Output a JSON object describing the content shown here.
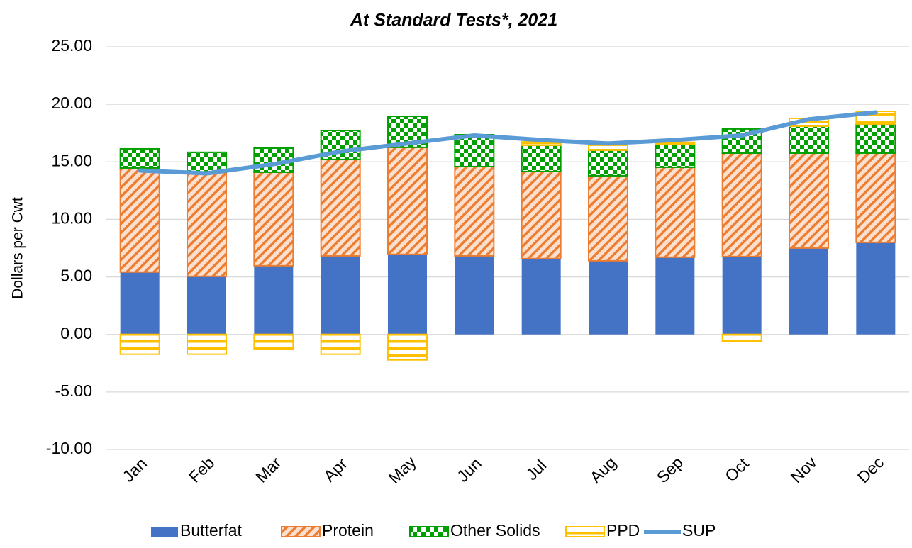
{
  "chart_data": {
    "type": "bar",
    "stacked": true,
    "title": "At Standard Tests*, 2021",
    "y_label": "Dollars per Cwt",
    "categories": [
      "Jan",
      "Feb",
      "Mar",
      "Apr",
      "May",
      "Jun",
      "Jul",
      "Aug",
      "Sep",
      "Oct",
      "Nov",
      "Dec"
    ],
    "series": [
      {
        "name": "Butterfat",
        "color": "#4472c4",
        "values": [
          5.42,
          5.05,
          5.97,
          6.83,
          6.96,
          6.83,
          6.59,
          6.4,
          6.71,
          6.77,
          7.51,
          8.0
        ]
      },
      {
        "name": "Protein",
        "color": "#ed7d31",
        "values": [
          9.05,
          9.05,
          8.13,
          8.38,
          9.3,
          7.76,
          7.57,
          7.39,
          7.82,
          8.99,
          8.25,
          7.76
        ]
      },
      {
        "name": "Other Solids",
        "color": "#00a000",
        "values": [
          1.66,
          1.73,
          2.09,
          2.52,
          2.7,
          2.77,
          2.28,
          2.22,
          1.97,
          2.1,
          2.34,
          2.53
        ]
      },
      {
        "name": "PPD",
        "color": "#ffc000",
        "values": [
          -1.72,
          -1.72,
          -1.29,
          -1.72,
          -2.22,
          0,
          0.3,
          0.43,
          0.2,
          -0.6,
          0.68,
          1.1
        ]
      },
      {
        "name": "SUP",
        "color": "#5b9bd5",
        "type": "line",
        "values": [
          14.25,
          14.0,
          14.8,
          15.9,
          16.6,
          17.3,
          16.9,
          16.6,
          16.9,
          17.3,
          18.7,
          19.3
        ]
      }
    ],
    "ylim": [
      -10,
      25
    ],
    "yticks": [
      {
        "value": -10,
        "label": "-10.00"
      },
      {
        "value": -5,
        "label": "-5.00"
      },
      {
        "value": 0,
        "label": "0.00"
      },
      {
        "value": 5,
        "label": "5.00"
      },
      {
        "value": 10,
        "label": "10.00"
      },
      {
        "value": 15,
        "label": "15.00"
      },
      {
        "value": 20,
        "label": "20.00"
      },
      {
        "value": 25,
        "label": "25.00"
      }
    ],
    "grid": true,
    "legend": "bottom"
  }
}
